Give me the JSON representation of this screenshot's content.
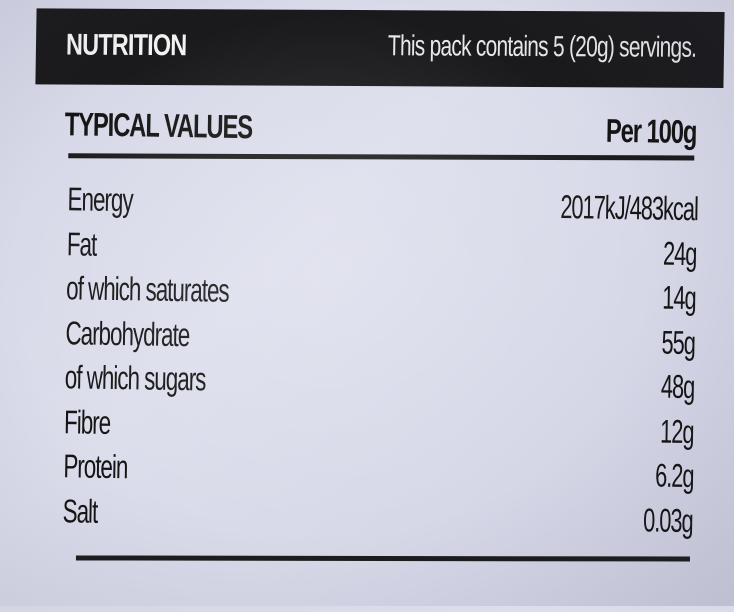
{
  "header": {
    "title": "NUTRITION",
    "servings_text": "This pack contains 5 (20g) servings."
  },
  "table": {
    "column_left": "TYPICAL VALUES",
    "column_right": "Per 100g",
    "rows": [
      {
        "name": "Energy",
        "value": "2017kJ/483kcal"
      },
      {
        "name": "Fat",
        "value": "24g"
      },
      {
        "name": "of which saturates",
        "value": "14g"
      },
      {
        "name": "Carbohydrate",
        "value": "55g"
      },
      {
        "name": "of which sugars",
        "value": "48g"
      },
      {
        "name": "Fibre",
        "value": "12g"
      },
      {
        "name": "Protein",
        "value": "6.2g"
      },
      {
        "name": "Salt",
        "value": "0.03g"
      }
    ]
  },
  "colors": {
    "header_background": "#1a1a1c",
    "label_background": "#d8dae8",
    "ink": "#141414"
  }
}
